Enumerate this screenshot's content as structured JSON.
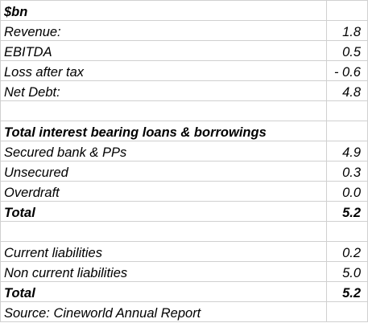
{
  "header": {
    "label": "$bn"
  },
  "summary": [
    {
      "label": "Revenue:",
      "value": "1.8"
    },
    {
      "label": "EBITDA",
      "value": "0.5"
    },
    {
      "label": "Loss after tax",
      "value": "- 0.6"
    },
    {
      "label": "Net Debt:",
      "value": "4.8"
    }
  ],
  "loans": {
    "title": "Total interest bearing loans & borrowings",
    "rows": [
      {
        "label": "Secured bank & PPs",
        "value": "4.9"
      },
      {
        "label": "Unsecured",
        "value": "0.3"
      },
      {
        "label": "Overdraft",
        "value": "0.0"
      }
    ],
    "total": {
      "label": "Total",
      "value": "5.2"
    }
  },
  "liabilities": {
    "rows": [
      {
        "label": "Current liabilities",
        "value": "0.2"
      },
      {
        "label": "Non current liabilities",
        "value": "5.0"
      }
    ],
    "total": {
      "label": "Total",
      "value": "5.2"
    }
  },
  "source": {
    "label": "Source: Cineworld Annual Report"
  }
}
